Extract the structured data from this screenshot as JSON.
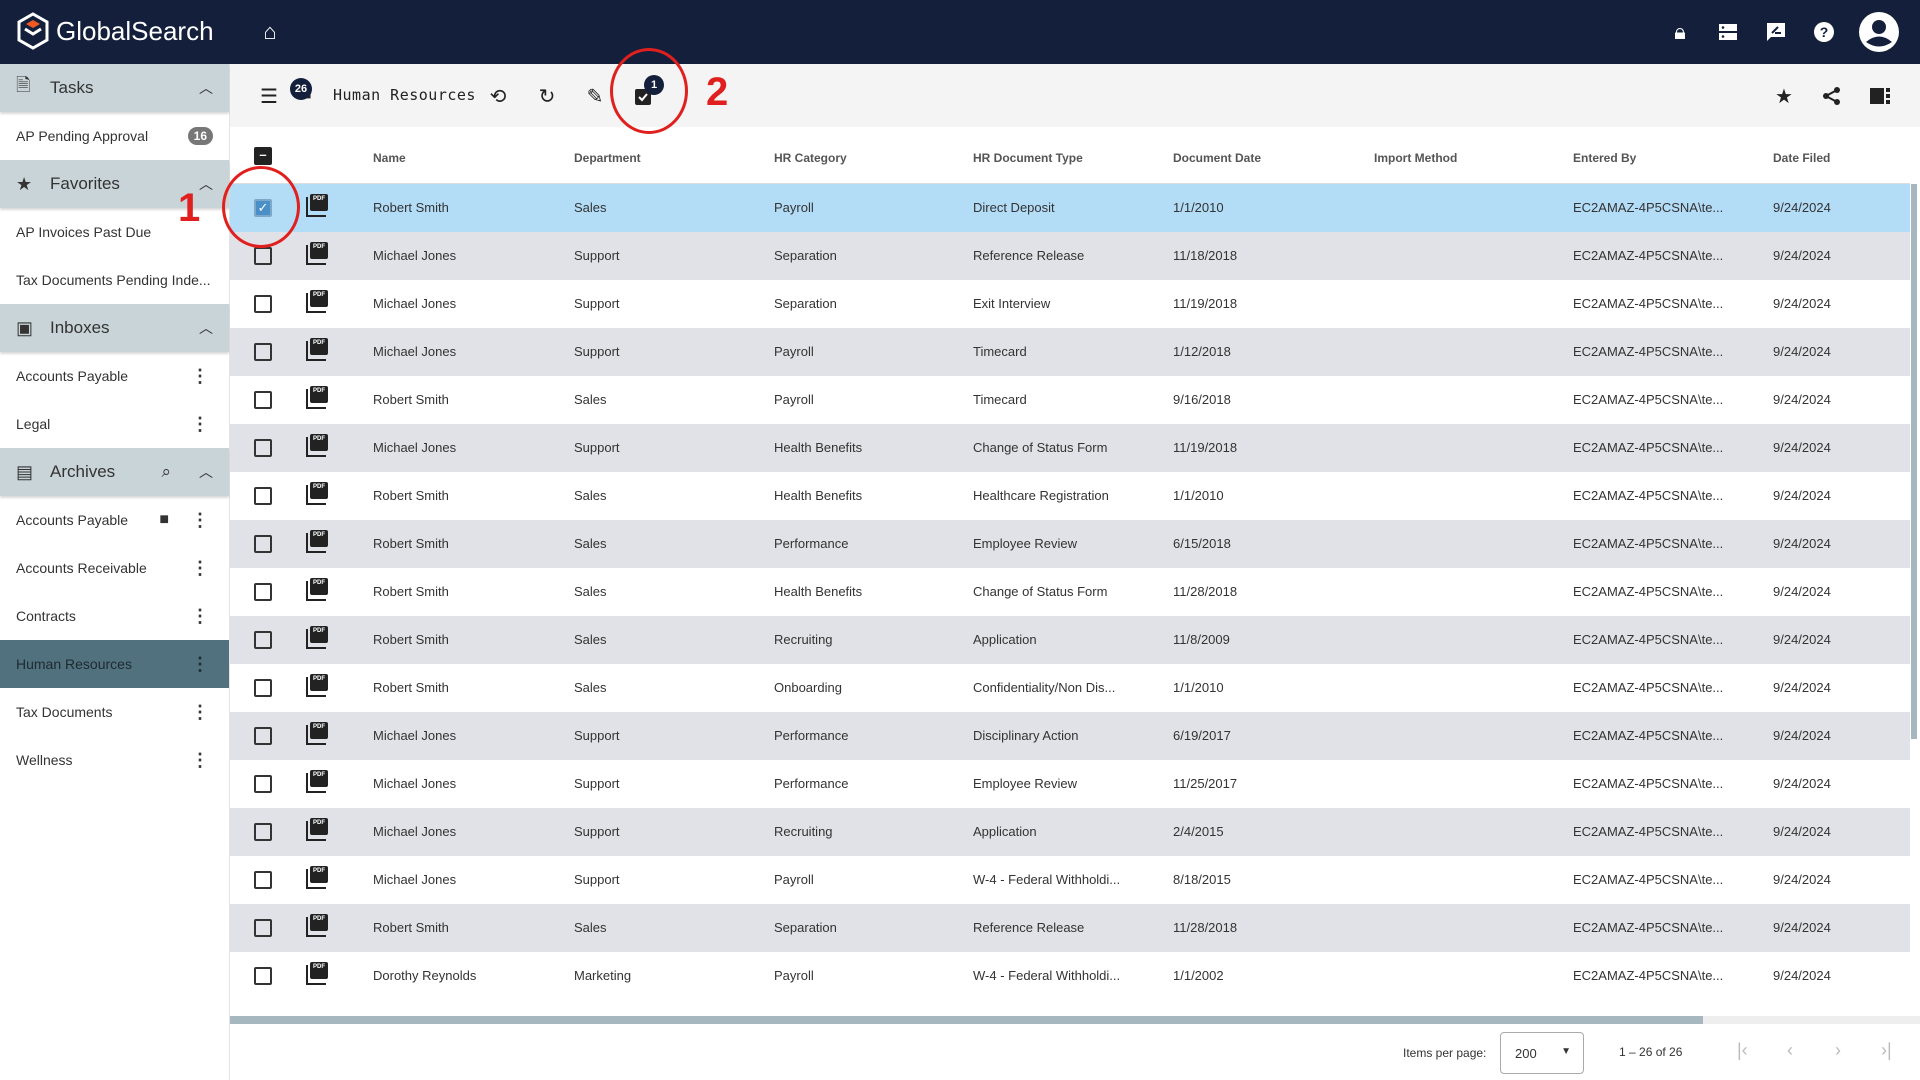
{
  "app": {
    "name": "GlobalSearch"
  },
  "topbar": {
    "icons": [
      "home-icon",
      "lock-icon",
      "server-icon",
      "feedback-icon",
      "help-icon",
      "account-icon"
    ]
  },
  "sidebar": {
    "tasks": {
      "label": "Tasks",
      "items": [
        {
          "label": "AP Pending Approval",
          "badge": "16"
        }
      ]
    },
    "favorites": {
      "label": "Favorites",
      "items": [
        {
          "label": "AP Invoices Past Due"
        },
        {
          "label": "Tax Documents Pending Inde..."
        }
      ]
    },
    "inboxes": {
      "label": "Inboxes",
      "items": [
        {
          "label": "Accounts Payable"
        },
        {
          "label": "Legal"
        }
      ]
    },
    "archives": {
      "label": "Archives",
      "items": [
        {
          "label": "Accounts Payable"
        },
        {
          "label": "Accounts Receivable"
        },
        {
          "label": "Contracts"
        },
        {
          "label": "Human Resources",
          "active": true
        },
        {
          "label": "Tax Documents"
        },
        {
          "label": "Wellness"
        }
      ]
    }
  },
  "toolbar": {
    "title": "Human Resources",
    "doc_count": "26",
    "selected_count": "1"
  },
  "annotations": {
    "one": "1",
    "two": "2",
    "color": "#e0201e"
  },
  "table": {
    "columns": [
      "Name",
      "Department",
      "HR Category",
      "HR Document Type",
      "Document Date",
      "Import Method",
      "Entered By",
      "Date Filed"
    ],
    "rows": [
      [
        "Robert Smith",
        "Sales",
        "Payroll",
        "Direct Deposit",
        "1/1/2010",
        "",
        "EC2AMAZ-4P5CSNA\\te...",
        "9/24/2024"
      ],
      [
        "Michael Jones",
        "Support",
        "Separation",
        "Reference Release",
        "11/18/2018",
        "",
        "EC2AMAZ-4P5CSNA\\te...",
        "9/24/2024"
      ],
      [
        "Michael Jones",
        "Support",
        "Separation",
        "Exit Interview",
        "11/19/2018",
        "",
        "EC2AMAZ-4P5CSNA\\te...",
        "9/24/2024"
      ],
      [
        "Michael Jones",
        "Support",
        "Payroll",
        "Timecard",
        "1/12/2018",
        "",
        "EC2AMAZ-4P5CSNA\\te...",
        "9/24/2024"
      ],
      [
        "Robert Smith",
        "Sales",
        "Payroll",
        "Timecard",
        "9/16/2018",
        "",
        "EC2AMAZ-4P5CSNA\\te...",
        "9/24/2024"
      ],
      [
        "Michael Jones",
        "Support",
        "Health Benefits",
        "Change of Status Form",
        "11/19/2018",
        "",
        "EC2AMAZ-4P5CSNA\\te...",
        "9/24/2024"
      ],
      [
        "Robert Smith",
        "Sales",
        "Health Benefits",
        "Healthcare Registration",
        "1/1/2010",
        "",
        "EC2AMAZ-4P5CSNA\\te...",
        "9/24/2024"
      ],
      [
        "Robert Smith",
        "Sales",
        "Performance",
        "Employee Review",
        "6/15/2018",
        "",
        "EC2AMAZ-4P5CSNA\\te...",
        "9/24/2024"
      ],
      [
        "Robert Smith",
        "Sales",
        "Health Benefits",
        "Change of Status Form",
        "11/28/2018",
        "",
        "EC2AMAZ-4P5CSNA\\te...",
        "9/24/2024"
      ],
      [
        "Robert Smith",
        "Sales",
        "Recruiting",
        "Application",
        "11/8/2009",
        "",
        "EC2AMAZ-4P5CSNA\\te...",
        "9/24/2024"
      ],
      [
        "Robert Smith",
        "Sales",
        "Onboarding",
        "Confidentiality/Non Dis...",
        "1/1/2010",
        "",
        "EC2AMAZ-4P5CSNA\\te...",
        "9/24/2024"
      ],
      [
        "Michael Jones",
        "Support",
        "Performance",
        "Disciplinary Action",
        "6/19/2017",
        "",
        "EC2AMAZ-4P5CSNA\\te...",
        "9/24/2024"
      ],
      [
        "Michael Jones",
        "Support",
        "Performance",
        "Employee Review",
        "11/25/2017",
        "",
        "EC2AMAZ-4P5CSNA\\te...",
        "9/24/2024"
      ],
      [
        "Michael Jones",
        "Support",
        "Recruiting",
        "Application",
        "2/4/2015",
        "",
        "EC2AMAZ-4P5CSNA\\te...",
        "9/24/2024"
      ],
      [
        "Michael Jones",
        "Support",
        "Payroll",
        "W-4 - Federal Withholdi...",
        "8/18/2015",
        "",
        "EC2AMAZ-4P5CSNA\\te...",
        "9/24/2024"
      ],
      [
        "Robert Smith",
        "Sales",
        "Separation",
        "Reference Release",
        "11/28/2018",
        "",
        "EC2AMAZ-4P5CSNA\\te...",
        "9/24/2024"
      ],
      [
        "Dorothy Reynolds",
        "Marketing",
        "Payroll",
        "W-4 - Federal Withholdi...",
        "1/1/2002",
        "",
        "EC2AMAZ-4P5CSNA\\te...",
        "9/24/2024"
      ]
    ],
    "selected_rows": [
      0
    ]
  },
  "footer": {
    "items_per_page_label": "Items per page:",
    "items_per_page": "200",
    "range": "1 – 26 of 26"
  }
}
